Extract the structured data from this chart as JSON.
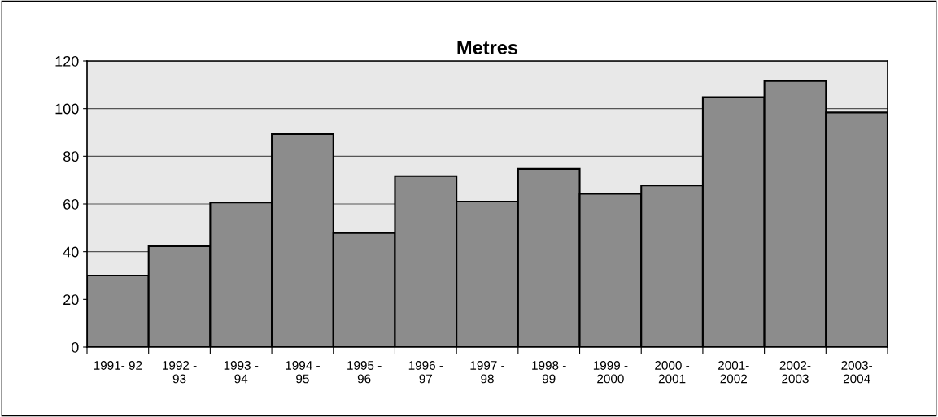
{
  "chart_data": {
    "type": "bar",
    "title": "Metres",
    "categories": [
      "1991- 92",
      "1992 -\n93",
      "1993 -\n94",
      "1994 -\n95",
      "1995 -\n96",
      "1996 -\n97",
      "1997 -\n98",
      "1998 -\n99",
      "1999 -\n2000",
      "2000 -\n2001",
      "2001-\n2002",
      "2002-\n2003",
      "2003-\n2004"
    ],
    "values": [
      30,
      42.3,
      60.6,
      89.3,
      47.8,
      71.7,
      61,
      74.7,
      64.3,
      67.8,
      104.8,
      111.6,
      98.4
    ],
    "color": "#8c8c8c",
    "ylim": [
      0,
      120
    ],
    "yticks": [
      0,
      20,
      40,
      60,
      80,
      100,
      120
    ],
    "grid": "y"
  }
}
